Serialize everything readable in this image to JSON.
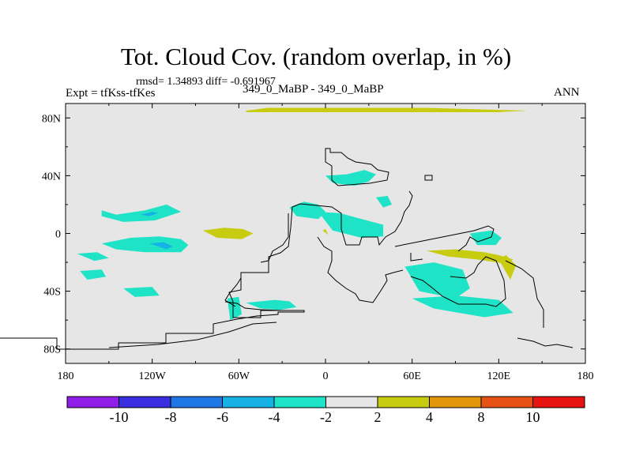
{
  "header": {
    "title": "Tot. Cloud Cov. (random overlap, in %)",
    "stats": "rmsd= 1.34893 diff= -0.691967",
    "expt": "Expt = tfKss-tfKes",
    "case": "349_0_MaBP - 349_0_MaBP",
    "season": "ANN"
  },
  "colors": {
    "background_field": "#e6e6e6",
    "coastline": "#000000",
    "palette": [
      "#8f1fe8",
      "#3a2de0",
      "#1f77e6",
      "#16b2e6",
      "#1fe3c7",
      "#e6e6e6",
      "#c8cc10",
      "#e3960a",
      "#e65214",
      "#e6130f"
    ]
  },
  "chart_data": {
    "type": "heatmap",
    "title": "Tot. Cloud Cov. (random overlap, in %)",
    "subtitle": "349_0_MaBP - 349_0_MaBP",
    "xlabel": "",
    "ylabel": "",
    "xlim": [
      -180,
      180
    ],
    "ylim": [
      -90,
      90
    ],
    "xticks": [
      {
        "value": -180,
        "label": "180"
      },
      {
        "value": -120,
        "label": "120W"
      },
      {
        "value": -60,
        "label": "60W"
      },
      {
        "value": 0,
        "label": "0"
      },
      {
        "value": 60,
        "label": "60E"
      },
      {
        "value": 120,
        "label": "120E"
      },
      {
        "value": 180,
        "label": "180"
      }
    ],
    "yticks": [
      {
        "value": 80,
        "label": "80N"
      },
      {
        "value": 40,
        "label": "40N"
      },
      {
        "value": 0,
        "label": "0"
      },
      {
        "value": -40,
        "label": "40S"
      },
      {
        "value": -80,
        "label": "80S"
      }
    ],
    "colorbar": {
      "levels": [
        -10,
        -8,
        -6,
        -4,
        -2,
        2,
        4,
        8,
        10
      ],
      "labels": [
        "-10",
        "-8",
        "-6",
        "-4",
        "-2",
        "2",
        "4",
        "8",
        "10"
      ]
    },
    "anomalies": [
      {
        "class": 6,
        "value": 3,
        "lon": [
          -55,
          -40,
          0,
          40,
          70,
          140,
          120,
          40,
          0,
          -40,
          -55
        ],
        "lat": [
          85,
          87,
          87,
          87,
          87,
          85,
          84,
          84,
          84,
          84,
          84
        ]
      },
      {
        "class": 4,
        "value": -3,
        "lon": [
          -155,
          -145,
          -125,
          -110,
          -100,
          -118,
          -140,
          -155
        ],
        "lat": [
          16,
          13,
          16,
          20,
          15,
          9,
          8,
          12
        ]
      },
      {
        "class": 3,
        "value": -5,
        "lon": [
          -128,
          -122,
          -116,
          -120,
          -128
        ],
        "lat": [
          13,
          12,
          14,
          15,
          13
        ]
      },
      {
        "class": 6,
        "value": 3,
        "lon": [
          -85,
          -70,
          -57,
          -50,
          -58,
          -75,
          -85
        ],
        "lat": [
          2,
          4,
          3,
          0,
          -4,
          -3,
          2
        ]
      },
      {
        "class": 4,
        "value": -3,
        "lon": [
          -155,
          -135,
          -115,
          -100,
          -95,
          -100,
          -125,
          -145,
          -155
        ],
        "lat": [
          -7,
          -3,
          -2,
          -4,
          -8,
          -13,
          -13,
          -11,
          -7
        ]
      },
      {
        "class": 3,
        "value": -5,
        "lon": [
          -122,
          -112,
          -106,
          -110,
          -122
        ],
        "lat": [
          -7,
          -6,
          -9,
          -11,
          -7
        ]
      },
      {
        "class": 4,
        "value": -3,
        "lon": [
          -172,
          -158,
          -150,
          -160,
          -172
        ],
        "lat": [
          -14,
          -13,
          -17,
          -19,
          -14
        ]
      },
      {
        "class": 4,
        "value": -3,
        "lon": [
          -170,
          -155,
          -152,
          -165,
          -170
        ],
        "lat": [
          -26,
          -25,
          -30,
          -32,
          -26
        ]
      },
      {
        "class": 4,
        "value": -3,
        "lon": [
          -140,
          -120,
          -115,
          -132,
          -140
        ],
        "lat": [
          -38,
          -37,
          -43,
          -44,
          -38
        ]
      },
      {
        "class": 4,
        "value": -3,
        "lon": [
          -25,
          -15,
          -5,
          0,
          -5,
          -20,
          -25
        ],
        "lat": [
          18,
          22,
          20,
          15,
          10,
          12,
          18
        ]
      },
      {
        "class": 4,
        "value": -3,
        "lon": [
          -5,
          10,
          25,
          40,
          40,
          25,
          5,
          -5
        ],
        "lat": [
          15,
          14,
          10,
          6,
          -2,
          -3,
          2,
          15
        ]
      },
      {
        "class": 4,
        "value": -3,
        "lon": [
          0,
          15,
          27,
          35,
          30,
          20,
          5,
          0
        ],
        "lat": [
          40,
          41,
          44,
          41,
          36,
          33,
          35,
          40
        ]
      },
      {
        "class": 4,
        "value": -3,
        "lon": [
          35,
          43,
          46,
          40,
          35
        ],
        "lat": [
          25,
          26,
          20,
          18,
          25
        ]
      },
      {
        "class": 4,
        "value": -3,
        "lon": [
          55,
          75,
          95,
          100,
          90,
          65,
          55
        ],
        "lat": [
          -23,
          -20,
          -25,
          -38,
          -45,
          -40,
          -23
        ]
      },
      {
        "class": 4,
        "value": -3,
        "lon": [
          60,
          90,
          120,
          130,
          110,
          75,
          60
        ],
        "lat": [
          -45,
          -43,
          -46,
          -55,
          -58,
          -52,
          -45
        ]
      },
      {
        "class": 4,
        "value": -3,
        "lon": [
          100,
          115,
          122,
          118,
          105,
          100
        ],
        "lat": [
          0,
          2,
          -3,
          -8,
          -8,
          0
        ]
      },
      {
        "class": 4,
        "value": -3,
        "lon": [
          -55,
          -35,
          -25,
          -20,
          -32,
          -45,
          -55
        ],
        "lat": [
          -48,
          -46,
          -47,
          -51,
          -53,
          -52,
          -48
        ]
      },
      {
        "class": 4,
        "value": -3,
        "lon": [
          -68,
          -60,
          -58,
          -66,
          -68
        ],
        "lat": [
          -45,
          -44,
          -56,
          -60,
          -45
        ]
      },
      {
        "class": 6,
        "value": 3,
        "lon": [
          70,
          90,
          110,
          120,
          130,
          125,
          105,
          85,
          70
        ],
        "lat": [
          -12,
          -11,
          -13,
          -15,
          -18,
          -21,
          -18,
          -16,
          -12
        ]
      },
      {
        "class": 6,
        "value": 3,
        "lon": [
          120,
          125,
          132,
          128,
          120
        ],
        "lat": [
          -18,
          -15,
          -22,
          -32,
          -18
        ]
      },
      {
        "class": 6,
        "value": 3,
        "lon": [
          -2,
          0,
          2,
          -2
        ],
        "lat": [
          2,
          3,
          -1,
          2
        ]
      }
    ]
  }
}
